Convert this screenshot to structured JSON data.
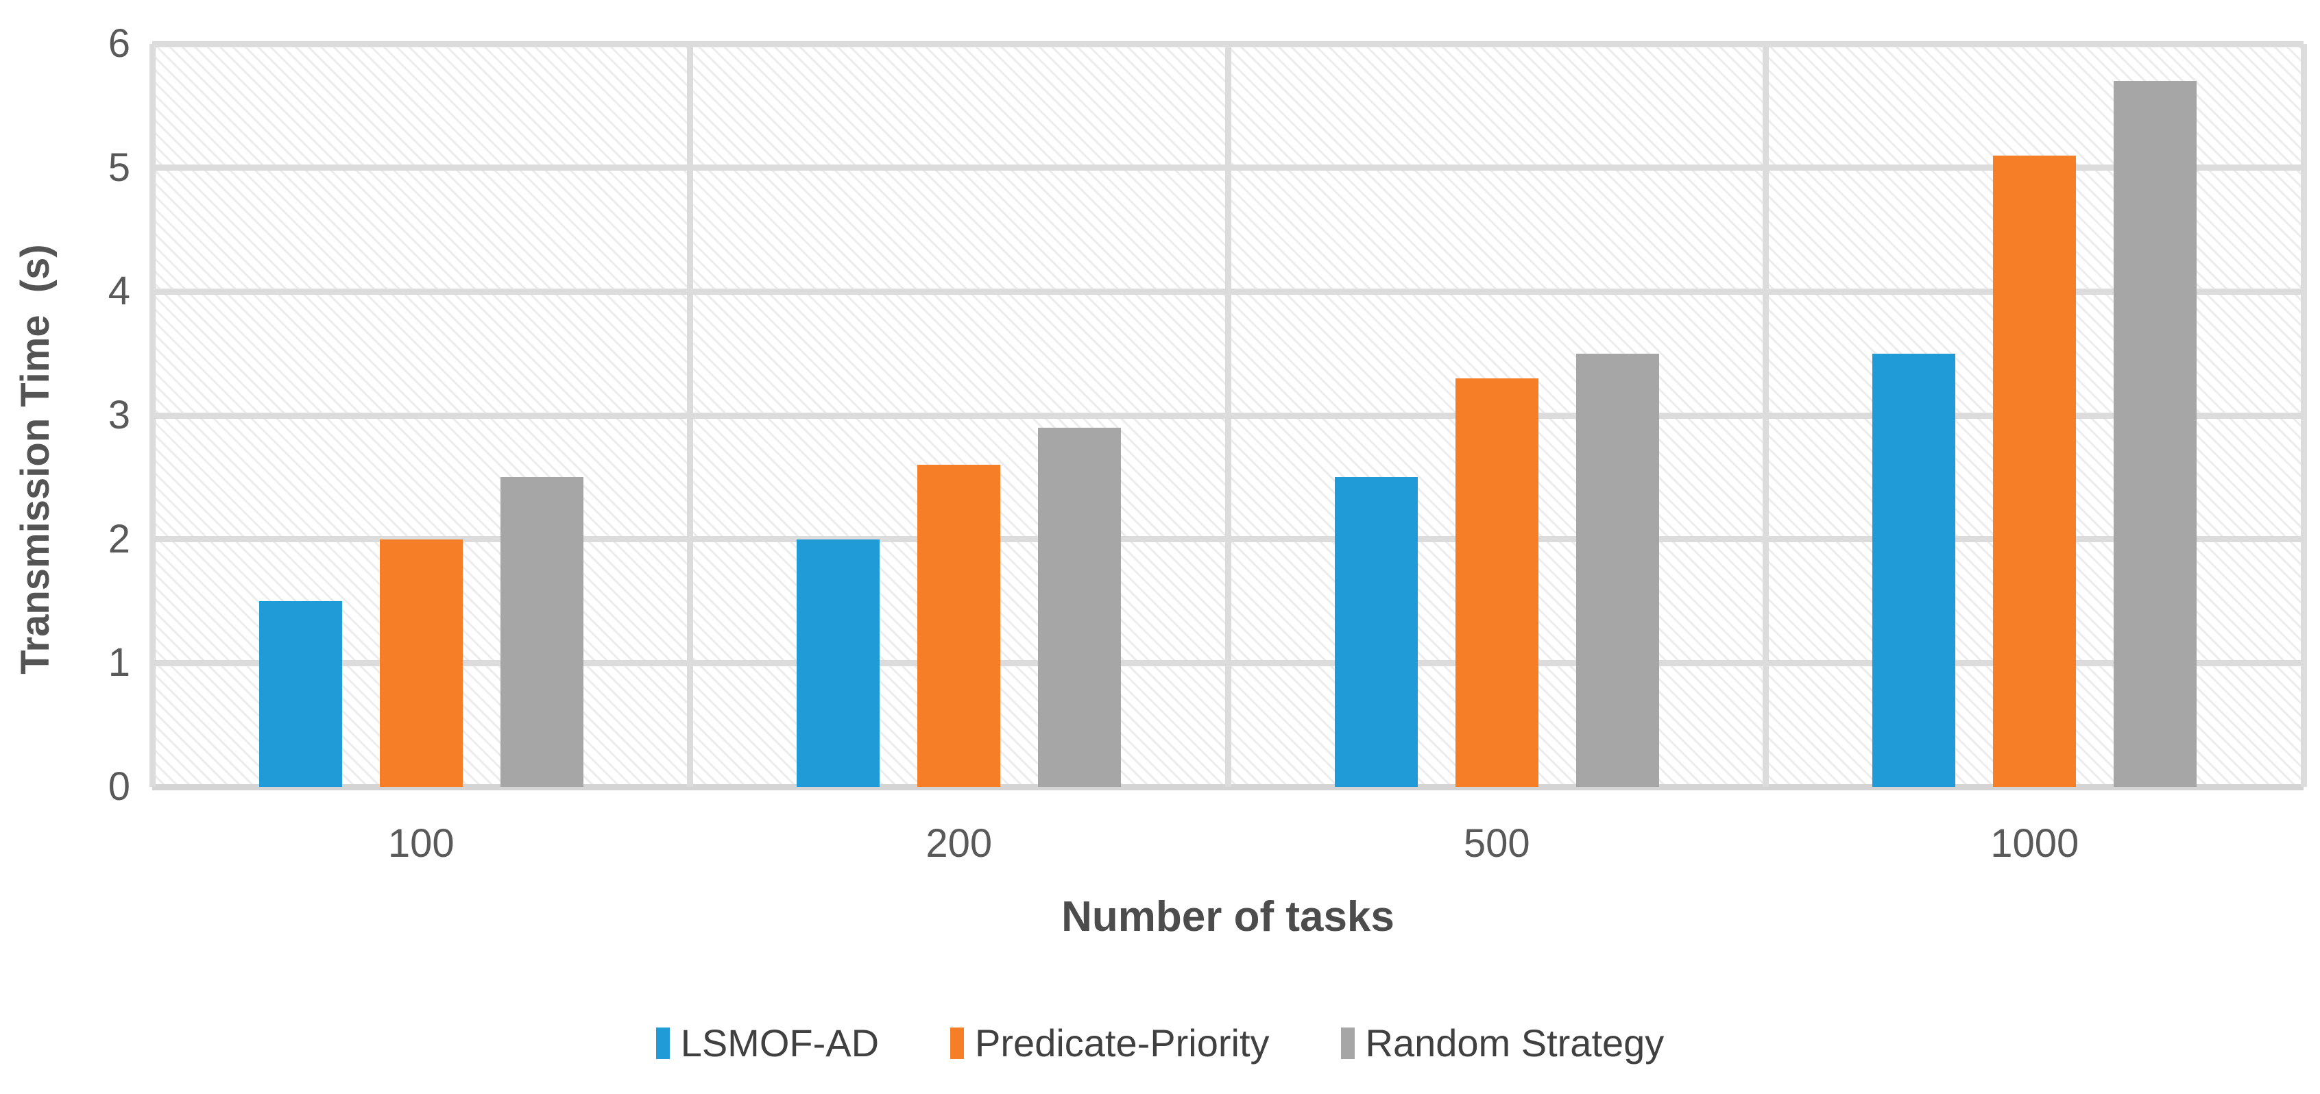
{
  "chart_data": {
    "type": "bar",
    "categories": [
      "100",
      "200",
      "500",
      "1000"
    ],
    "series": [
      {
        "name": "LSMOF-AD",
        "color": "#209BD8",
        "values": [
          1.5,
          2.0,
          2.5,
          3.5
        ]
      },
      {
        "name": "Predicate-Priority",
        "color": "#F57E27",
        "values": [
          2.0,
          2.6,
          3.3,
          5.1
        ]
      },
      {
        "name": "Random Strategy",
        "color": "#A6A6A6",
        "values": [
          2.5,
          2.9,
          3.5,
          5.7
        ]
      }
    ],
    "xlabel": "Number of tasks",
    "ylabel": "Transmission Time  (s)",
    "ylim": [
      0,
      6
    ],
    "yticks": [
      0,
      1,
      2,
      3,
      4,
      5,
      6
    ],
    "grid": true,
    "legend_position": "bottom",
    "plot_background": "diagonal-hatch"
  },
  "style": {
    "gridline_color": "#dcdcdc",
    "axis_line_color": "#d4d4d4",
    "tick_text_color": "#595959",
    "title_text_color": "#4c4c4c",
    "legend_text_color": "#404040"
  }
}
